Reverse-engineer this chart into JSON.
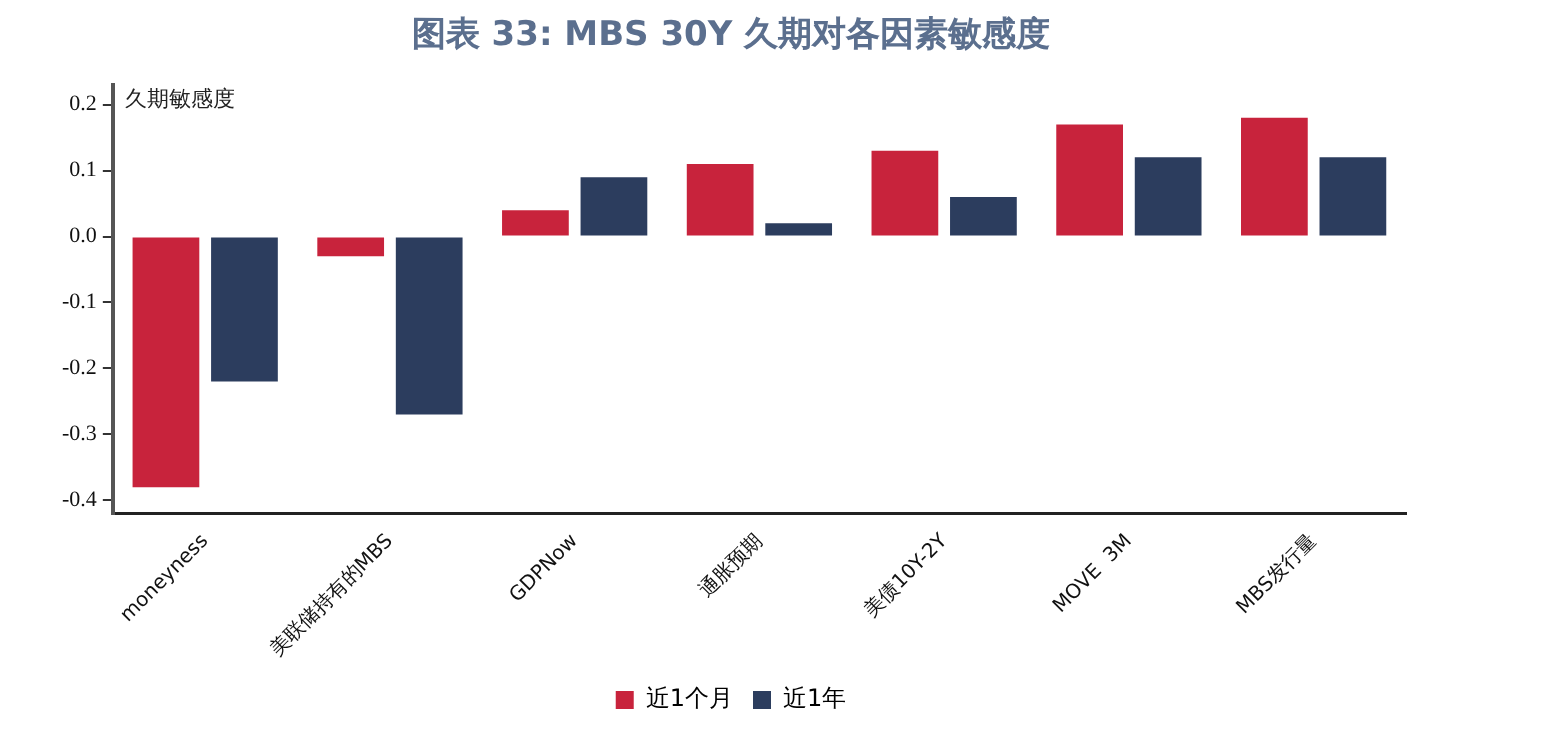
{
  "chart_data": {
    "type": "bar",
    "title": "图表 33: MBS 30Y 久期对各因素敏感度",
    "ylabel": "久期敏感度",
    "categories": [
      "moneyness",
      "美联储持有的MBS",
      "GDPNow",
      "通胀预期",
      "美债10Y-2Y",
      "MOVE  3M",
      "MBS发行量"
    ],
    "series": [
      {
        "name": "近1个月",
        "color": "#c8233c",
        "values": [
          -0.38,
          -0.03,
          0.04,
          0.11,
          0.13,
          0.17,
          0.18
        ]
      },
      {
        "name": "近1年",
        "color": "#2c3d5e",
        "values": [
          -0.22,
          -0.27,
          0.09,
          0.02,
          0.06,
          0.12,
          0.12
        ]
      }
    ],
    "ylim": [
      -0.42,
      0.23
    ],
    "yticks": [
      -0.4,
      -0.3,
      -0.2,
      -0.1,
      {
        "value": 0,
        "label": "0.0"
      },
      0.1,
      0.2
    ],
    "grid": false,
    "legend": "bottom"
  }
}
